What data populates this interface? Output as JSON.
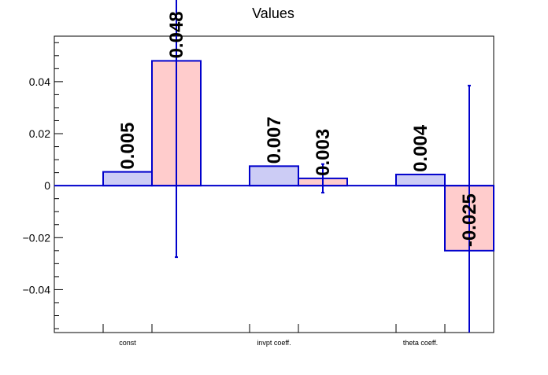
{
  "chart_data": {
    "type": "bar",
    "title": "Values",
    "categories": [
      "const",
      "invpt coeff.",
      "theta coeff."
    ],
    "series": [
      {
        "values": [
          0.0053,
          0.0075,
          0.0043
        ],
        "value_labels": [
          "0.005",
          "0.007",
          "0.004"
        ],
        "errors": [
          0,
          0,
          0
        ],
        "fill": "#ccccf5",
        "stroke": "#0000cc"
      },
      {
        "values": [
          0.048,
          0.0028,
          -0.025
        ],
        "value_labels": [
          "0.048",
          "0.003",
          "-0.025"
        ],
        "errors": [
          0.0755,
          0.0055,
          0.0635
        ],
        "fill": "#ffcccc",
        "stroke": "#0000cc"
      }
    ],
    "ylim": [
      -0.0565,
      0.0575
    ],
    "yticks": [
      -0.04,
      -0.02,
      0,
      0.02,
      0.04
    ],
    "ytick_labels": [
      "−0.04",
      "−0.02",
      "0",
      "0.02",
      "0.04"
    ],
    "xlabel": "",
    "ylabel": "",
    "zero_line_color": "#0000cc",
    "error_bar_color": "#0000cc",
    "grid": false,
    "legend": "none"
  }
}
